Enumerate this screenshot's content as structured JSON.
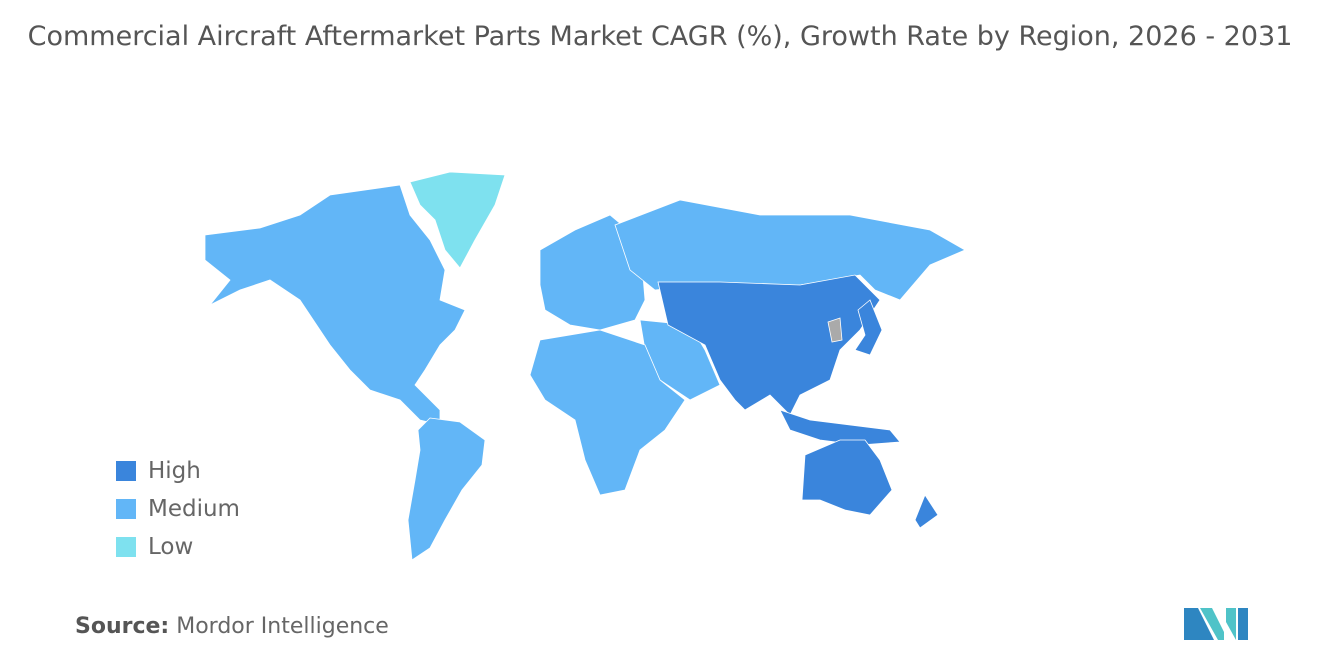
{
  "title": "Commercial Aircraft Aftermarket Parts Market CAGR (%), Growth Rate by Region, 2026 - 2031",
  "legend": [
    {
      "label": "High",
      "color": "#3a85dc"
    },
    {
      "label": "Medium",
      "color": "#62b6f7"
    },
    {
      "label": "Low",
      "color": "#7ee1ef"
    }
  ],
  "no_data_color": "#aaaaaa",
  "regions": {
    "north_america": "Medium",
    "greenland": "Low",
    "south_america": "Medium",
    "europe": "Medium",
    "russia": "Medium",
    "middle_east": "Medium",
    "africa": "Medium",
    "asia_pacific": "High",
    "australia": "High",
    "new_zealand": "High"
  },
  "source": {
    "label": "Source:",
    "value": "Mordor Intelligence"
  }
}
